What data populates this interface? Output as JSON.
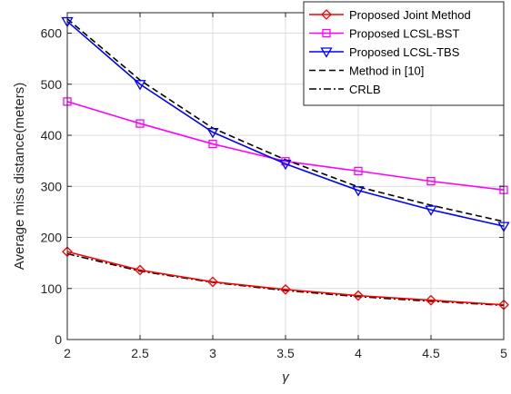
{
  "chart_data": {
    "type": "line",
    "xlabel": "γ",
    "ylabel": "Average miss distance(meters)",
    "xlim": [
      2,
      5
    ],
    "ylim": [
      0,
      640
    ],
    "xticks": [
      2,
      2.5,
      3,
      3.5,
      4,
      4.5,
      5
    ],
    "xtick_labels": [
      "2",
      "2.5",
      "3",
      "3.5",
      "4",
      "4.5",
      "5"
    ],
    "yticks": [
      0,
      100,
      200,
      300,
      400,
      500,
      600
    ],
    "ytick_labels": [
      "0",
      "100",
      "200",
      "300",
      "400",
      "500",
      "600"
    ],
    "grid": true,
    "legend_position": "top-right",
    "x": [
      2,
      2.5,
      3,
      3.5,
      4,
      4.5,
      5
    ],
    "series": [
      {
        "name": "Proposed Joint Method",
        "values": [
          172,
          136,
          113,
          98,
          86,
          77,
          68
        ],
        "color": "#ff0000",
        "marker": "diamond",
        "dash": "solid"
      },
      {
        "name": "Proposed LCSL-BST",
        "values": [
          466,
          423,
          383,
          349,
          330,
          310,
          293
        ],
        "color": "#ff00ff",
        "marker": "square",
        "dash": "solid"
      },
      {
        "name": "Proposed LCSL-TBS",
        "values": [
          623,
          500,
          406,
          344,
          292,
          254,
          222
        ],
        "color": "#0000ff",
        "marker": "triangle-down",
        "dash": "solid"
      },
      {
        "name": "Method in [10]",
        "values": [
          628,
          508,
          414,
          352,
          299,
          263,
          231
        ],
        "color": "#000000",
        "marker": "none",
        "dash": "dashed"
      },
      {
        "name": "CRLB",
        "values": [
          168,
          134,
          112,
          96,
          84,
          75,
          67
        ],
        "color": "#000000",
        "marker": "none",
        "dash": "dashdot"
      }
    ]
  }
}
